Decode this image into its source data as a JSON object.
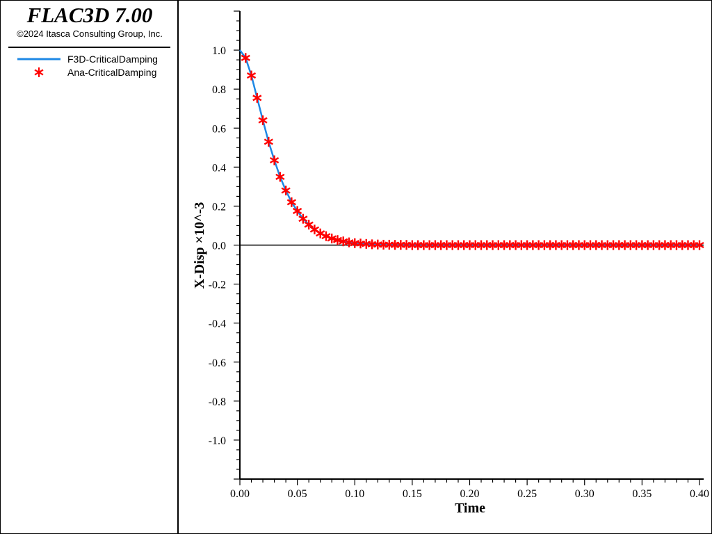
{
  "header": {
    "app_title": "FLAC3D 7.00",
    "copyright": "©2024 Itasca Consulting Group, Inc."
  },
  "legend": [
    {
      "label": "F3D-CriticalDamping",
      "style": "line",
      "color": "#1e88e5"
    },
    {
      "label": "Ana-CriticalDamping",
      "style": "asterisk",
      "color": "#ff0000"
    }
  ],
  "chart_data": {
    "type": "line",
    "xlabel": "Time",
    "ylabel": "X-Disp ×10^-3",
    "xlim": [
      0.0,
      0.4
    ],
    "ylim": [
      -1.2,
      1.2
    ],
    "x_ticks": [
      "0.00",
      "0.05",
      "0.10",
      "0.15",
      "0.20",
      "0.25",
      "0.30",
      "0.35",
      "0.40"
    ],
    "y_ticks": [
      "1.0",
      "0.8",
      "0.6",
      "0.4",
      "0.2",
      "0.0",
      "-0.2",
      "-0.4",
      "-0.6",
      "-0.8",
      "-1.0"
    ],
    "y_tick_values": [
      1.0,
      0.8,
      0.6,
      0.4,
      0.2,
      0.0,
      -0.2,
      -0.4,
      -0.6,
      -0.8,
      -1.0
    ],
    "x_tick_values": [
      0.0,
      0.05,
      0.1,
      0.15,
      0.2,
      0.25,
      0.3,
      0.35,
      0.4
    ],
    "zero_line": true,
    "grid": false,
    "legend_position": "left-panel",
    "series": [
      {
        "name": "F3D-CriticalDamping",
        "style": "line",
        "color": "#1e88e5",
        "x": [
          0.0,
          0.005,
          0.01,
          0.015,
          0.02,
          0.025,
          0.03,
          0.035,
          0.04,
          0.045,
          0.05,
          0.055,
          0.06,
          0.065,
          0.07,
          0.075,
          0.08,
          0.085,
          0.09,
          0.095,
          0.1,
          0.11,
          0.12,
          0.14,
          0.16,
          0.2,
          0.25,
          0.3,
          0.35,
          0.4
        ],
        "y": [
          1.0,
          0.96,
          0.87,
          0.755,
          0.64,
          0.53,
          0.435,
          0.35,
          0.28,
          0.22,
          0.175,
          0.135,
          0.105,
          0.08,
          0.06,
          0.046,
          0.034,
          0.026,
          0.019,
          0.014,
          0.01,
          0.006,
          0.003,
          0.001,
          0.0,
          0.0,
          0.0,
          0.0,
          0.0,
          0.0
        ]
      },
      {
        "name": "Ana-CriticalDamping",
        "style": "asterisk",
        "color": "#ff0000",
        "x": [
          0.005,
          0.01,
          0.015,
          0.02,
          0.025,
          0.03,
          0.035,
          0.04,
          0.045,
          0.05,
          0.055,
          0.06,
          0.065,
          0.07,
          0.075,
          0.08,
          0.085,
          0.09,
          0.095,
          0.1,
          0.105,
          0.11,
          0.115,
          0.12,
          0.125,
          0.13,
          0.135,
          0.14,
          0.145,
          0.15,
          0.155,
          0.16,
          0.165,
          0.17,
          0.175,
          0.18,
          0.185,
          0.19,
          0.195,
          0.2,
          0.205,
          0.21,
          0.215,
          0.22,
          0.225,
          0.23,
          0.235,
          0.24,
          0.245,
          0.25,
          0.255,
          0.26,
          0.265,
          0.27,
          0.275,
          0.28,
          0.285,
          0.29,
          0.295,
          0.3,
          0.305,
          0.31,
          0.315,
          0.32,
          0.325,
          0.33,
          0.335,
          0.34,
          0.345,
          0.35,
          0.355,
          0.36,
          0.365,
          0.37,
          0.375,
          0.38,
          0.385,
          0.39,
          0.395,
          0.4
        ],
        "y": [
          0.96,
          0.87,
          0.755,
          0.64,
          0.53,
          0.435,
          0.35,
          0.28,
          0.22,
          0.175,
          0.135,
          0.105,
          0.08,
          0.06,
          0.046,
          0.034,
          0.026,
          0.019,
          0.014,
          0.01,
          0.008,
          0.006,
          0.004,
          0.003,
          0.002,
          0.002,
          0.001,
          0.001,
          0.001,
          0.0,
          0.0,
          0.0,
          0.0,
          0.0,
          0.0,
          0.0,
          0.0,
          0.0,
          0.0,
          0.0,
          0.0,
          0.0,
          0.0,
          0.0,
          0.0,
          0.0,
          0.0,
          0.0,
          0.0,
          0.0,
          0.0,
          0.0,
          0.0,
          0.0,
          0.0,
          0.0,
          0.0,
          0.0,
          0.0,
          0.0,
          0.0,
          0.0,
          0.0,
          0.0,
          0.0,
          0.0,
          0.0,
          0.0,
          0.0,
          0.0,
          0.0,
          0.0,
          0.0,
          0.0,
          0.0,
          0.0,
          0.0,
          0.0,
          0.0,
          0.0
        ]
      }
    ]
  }
}
